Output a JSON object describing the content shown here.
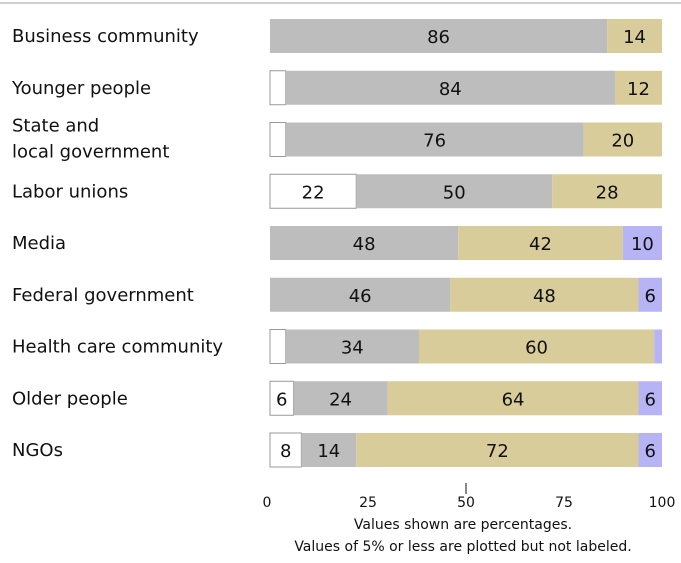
{
  "chart_data": {
    "type": "bar",
    "orientation": "horizontal",
    "stacked": true,
    "categories": [
      "Business community",
      "Younger people",
      "State and local government",
      "Labor unions",
      "Media",
      "Federal government",
      "Health care community",
      "Older people",
      "NGOs"
    ],
    "series": [
      {
        "color": "#ffffff",
        "values": [
          0,
          4,
          4,
          22,
          0,
          0,
          4,
          6,
          8
        ],
        "labels": [
          "",
          "",
          "",
          "22",
          "",
          "",
          "",
          "6",
          "8"
        ]
      },
      {
        "color": "#bdbdbd",
        "values": [
          86,
          84,
          76,
          50,
          48,
          46,
          34,
          24,
          14
        ],
        "labels": [
          "86",
          "84",
          "76",
          "50",
          "48",
          "46",
          "34",
          "24",
          "14"
        ]
      },
      {
        "color": "#d9cc9b",
        "values": [
          14,
          12,
          20,
          28,
          42,
          48,
          60,
          64,
          72
        ],
        "labels": [
          "14",
          "12",
          "20",
          "28",
          "42",
          "48",
          "60",
          "64",
          "72"
        ]
      },
      {
        "color": "#b7b4f5",
        "values": [
          0,
          0,
          0,
          0,
          10,
          6,
          2,
          6,
          6
        ],
        "labels": [
          "",
          "",
          "",
          "",
          "10",
          "6",
          "",
          "6",
          "6"
        ]
      }
    ],
    "xlim": [
      0,
      100
    ],
    "x_ticks": [
      "0",
      "25",
      "50",
      "75",
      "100"
    ],
    "grid": false,
    "legend": "none"
  },
  "notes": {
    "line1": "Values shown are percentages.",
    "line2": "Values of 5% or less are plotted but not labeled."
  }
}
